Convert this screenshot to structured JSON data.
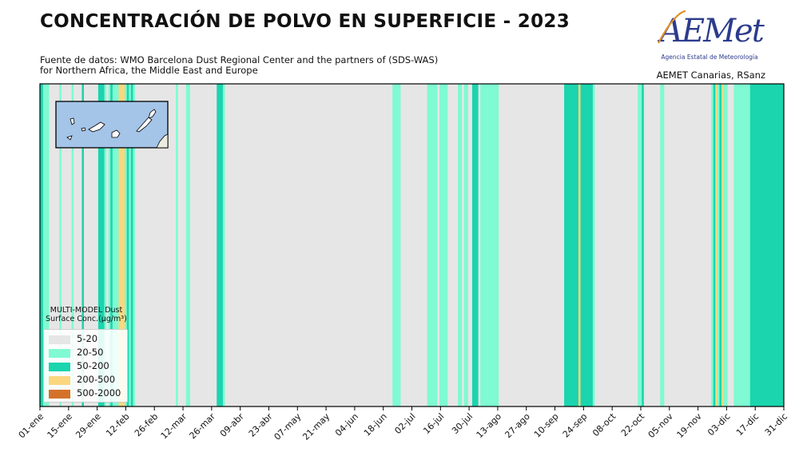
{
  "header": {
    "title": "CONCENTRACIÓN DE POLVO EN SUPERFICIE - 2023",
    "source_line1": "Fuente de datos: WMO Barcelona Dust Regional Center and the partners of (SDS-WAS)",
    "source_line2": "for Northern Africa, the Middle East and Europe",
    "credit": "AEMET Canarias, RSanz"
  },
  "logo": {
    "wordmark": "AEMet",
    "tagline": "Agencia Estatal de Meteorología",
    "color_primary": "#2c3c8c",
    "color_accent": "#e0902a"
  },
  "colors": {
    "5-20": "#e6e6e6",
    "20-50": "#7ffad2",
    "50-200": "#1ad5ae",
    "200-500": "#fad77f",
    "500-2000": "#d4722a"
  },
  "chart_data": {
    "type": "heatmap",
    "xlim": [
      "2023-01-01",
      "2023-12-31"
    ],
    "x_ticks": [
      "01-ene",
      "15-ene",
      "29-ene",
      "12-feb",
      "26-feb",
      "12-mar",
      "26-mar",
      "09-abr",
      "23-abr",
      "07-may",
      "21-may",
      "04-jun",
      "18-jun",
      "02-jul",
      "16-jul",
      "30-jul",
      "13-ago",
      "27-ago",
      "10-sep",
      "24-sep",
      "08-oct",
      "22-oct",
      "05-nov",
      "19-nov",
      "03-dic",
      "17-dic",
      "31-dic"
    ],
    "legend": {
      "title": "MULTI-MODEL Dust\nSurface Conc.(µg/m³)",
      "placement": "lower-left",
      "entries": [
        "5-20",
        "20-50",
        "50-200",
        "200-500",
        "500-2000"
      ]
    },
    "inset": "Canary Islands map",
    "daily_classes": [
      "50-200",
      "50-200",
      "20-50",
      "20-50",
      "20-50",
      "5-20",
      "5-20",
      "5-20",
      "5-20",
      "5-20",
      "20-50",
      "5-20",
      "5-20",
      "5-20",
      "5-20",
      "5-20",
      "20-50",
      "5-20",
      "5-20",
      "5-20",
      "5-20",
      "50-200",
      "5-20",
      "5-20",
      "5-20",
      "5-20",
      "5-20",
      "5-20",
      "5-20",
      "50-200",
      "50-200",
      "50-200",
      "20-50",
      "5-20",
      "20-50",
      "50-200",
      "20-50",
      "20-50",
      "20-50",
      "200-500",
      "200-500",
      "200-500",
      "20-50",
      "50-200",
      "20-50",
      "50-200",
      "20-50",
      "5-20",
      "5-20",
      "5-20",
      "5-20",
      "5-20",
      "5-20",
      "5-20",
      "5-20",
      "5-20",
      "5-20",
      "5-20",
      "5-20",
      "5-20",
      "5-20",
      "5-20",
      "5-20",
      "5-20",
      "5-20",
      "5-20",
      "5-20",
      "20-50",
      "5-20",
      "5-20",
      "5-20",
      "5-20",
      "20-50",
      "20-50",
      "5-20",
      "5-20",
      "5-20",
      "5-20",
      "5-20",
      "5-20",
      "5-20",
      "5-20",
      "5-20",
      "5-20",
      "5-20",
      "5-20",
      "5-20",
      "50-200",
      "50-200",
      "50-200",
      "20-50",
      "5-20",
      "5-20",
      "5-20",
      "5-20",
      "5-20",
      "5-20",
      "5-20",
      "5-20",
      "5-20",
      "5-20",
      "5-20",
      "5-20",
      "5-20",
      "5-20",
      "5-20",
      "5-20",
      "5-20",
      "5-20",
      "5-20",
      "5-20",
      "5-20",
      "5-20",
      "5-20",
      "5-20",
      "5-20",
      "5-20",
      "5-20",
      "5-20",
      "5-20",
      "5-20",
      "5-20",
      "5-20",
      "5-20",
      "5-20",
      "5-20",
      "5-20",
      "5-20",
      "5-20",
      "5-20",
      "5-20",
      "5-20",
      "5-20",
      "5-20",
      "5-20",
      "5-20",
      "5-20",
      "5-20",
      "5-20",
      "5-20",
      "5-20",
      "5-20",
      "5-20",
      "5-20",
      "5-20",
      "5-20",
      "5-20",
      "5-20",
      "5-20",
      "5-20",
      "5-20",
      "5-20",
      "5-20",
      "5-20",
      "5-20",
      "5-20",
      "5-20",
      "5-20",
      "5-20",
      "5-20",
      "5-20",
      "5-20",
      "5-20",
      "5-20",
      "5-20",
      "5-20",
      "5-20",
      "5-20",
      "5-20",
      "5-20",
      "5-20",
      "5-20",
      "5-20",
      "20-50",
      "20-50",
      "20-50",
      "20-50",
      "5-20",
      "5-20",
      "5-20",
      "5-20",
      "5-20",
      "5-20",
      "5-20",
      "5-20",
      "5-20",
      "5-20",
      "5-20",
      "5-20",
      "5-20",
      "20-50",
      "20-50",
      "20-50",
      "20-50",
      "20-50",
      "5-20",
      "20-50",
      "20-50",
      "20-50",
      "20-50",
      "5-20",
      "5-20",
      "5-20",
      "5-20",
      "5-20",
      "20-50",
      "20-50",
      "5-20",
      "20-50",
      "20-50",
      "5-20",
      "5-20",
      "50-200",
      "50-200",
      "50-200",
      "5-20",
      "20-50",
      "20-50",
      "20-50",
      "20-50",
      "20-50",
      "20-50",
      "20-50",
      "20-50",
      "20-50",
      "5-20",
      "5-20",
      "5-20",
      "5-20",
      "5-20",
      "5-20",
      "5-20",
      "5-20",
      "5-20",
      "5-20",
      "5-20",
      "5-20",
      "5-20",
      "5-20",
      "5-20",
      "5-20",
      "5-20",
      "5-20",
      "5-20",
      "5-20",
      "5-20",
      "5-20",
      "5-20",
      "5-20",
      "5-20",
      "5-20",
      "5-20",
      "5-20",
      "5-20",
      "5-20",
      "5-20",
      "5-20",
      "50-200",
      "50-200",
      "50-200",
      "50-200",
      "50-200",
      "50-200",
      "50-200",
      "200-500",
      "50-200",
      "50-200",
      "50-200",
      "50-200",
      "50-200",
      "50-200",
      "20-50",
      "5-20",
      "5-20",
      "5-20",
      "5-20",
      "5-20",
      "5-20",
      "5-20",
      "5-20",
      "5-20",
      "5-20",
      "5-20",
      "5-20",
      "5-20",
      "5-20",
      "5-20",
      "5-20",
      "5-20",
      "5-20",
      "5-20",
      "5-20",
      "5-20",
      "20-50",
      "20-50",
      "50-200",
      "5-20",
      "5-20",
      "5-20",
      "5-20",
      "5-20",
      "5-20",
      "5-20",
      "5-20",
      "20-50",
      "20-50",
      "5-20",
      "5-20",
      "5-20",
      "5-20",
      "5-20",
      "5-20",
      "5-20",
      "5-20",
      "5-20",
      "5-20",
      "5-20",
      "5-20",
      "5-20",
      "5-20",
      "5-20",
      "5-20",
      "5-20",
      "5-20",
      "5-20",
      "5-20",
      "5-20",
      "5-20",
      "5-20",
      "20-50",
      "50-200",
      "200-500",
      "20-50",
      "50-200",
      "200-500",
      "20-50",
      "20-50",
      "5-20",
      "5-20",
      "5-20",
      "20-50",
      "20-50",
      "20-50",
      "20-50",
      "20-50",
      "20-50",
      "20-50",
      "20-50",
      "50-200",
      "50-200",
      "50-200",
      "50-200",
      "50-200",
      "50-200",
      "50-200",
      "50-200",
      "50-200",
      "50-200",
      "50-200",
      "50-200",
      "50-200",
      "50-200",
      "50-200",
      "50-200",
      "50-200"
    ]
  }
}
